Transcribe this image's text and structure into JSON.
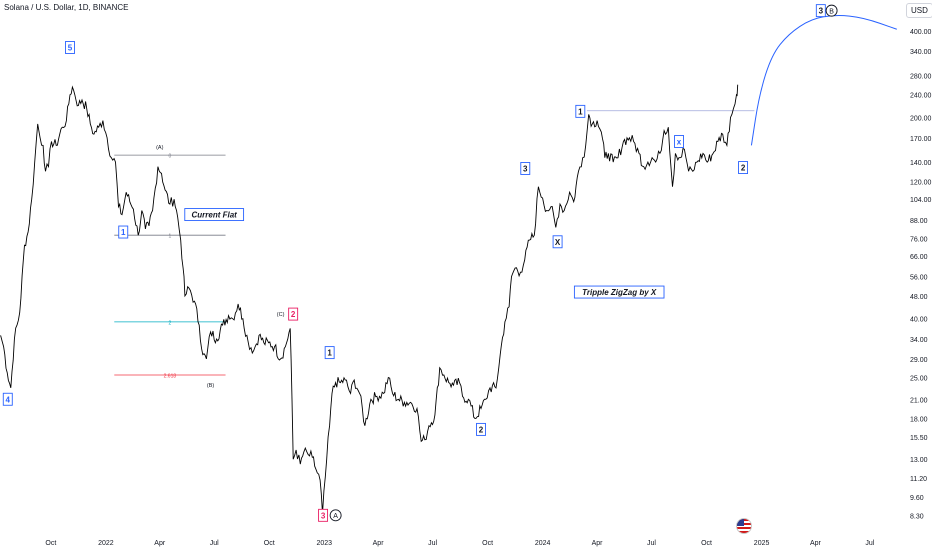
{
  "header": {
    "title": "Solana / U.S. Dollar, 1D, BINANCE",
    "currency": "USD"
  },
  "colors": {
    "price": "#000000",
    "wave_blue": "#2962ff",
    "wave_red": "#e91e63",
    "fib_gray": "#787b86",
    "fib_teal": "#00acc1",
    "fib_red": "#f23645",
    "projection": "#2962ff",
    "resistance": "#9fa8da",
    "axis_text": "#131722"
  },
  "icons": {
    "flag": "us-flag-icon"
  },
  "chart_data": {
    "type": "line",
    "title": "Solana / U.S. Dollar, 1D, BINANCE",
    "y_scale": "log",
    "ylim": [
      7.5,
      480
    ],
    "x_tick_labels": [
      "Oct",
      "2022",
      "Apr",
      "Jul",
      "Oct",
      "2023",
      "Apr",
      "Jul",
      "Oct",
      "2024",
      "Apr",
      "Jul",
      "Oct",
      "2025",
      "Apr",
      "Jul"
    ],
    "y_tick_labels": [
      "400.00",
      "340.00",
      "280.00",
      "240.00",
      "200.00",
      "170.00",
      "140.00",
      "120.00",
      "104.00",
      "88.00",
      "76.00",
      "66.00",
      "56.00",
      "48.00",
      "40.00",
      "34.00",
      "29.00",
      "25.00",
      "21.00",
      "18.00",
      "15.50",
      "13.00",
      "11.20",
      "9.60",
      "8.30"
    ],
    "y_ticks": [
      400,
      340,
      280,
      240,
      200,
      170,
      140,
      120,
      104,
      88,
      76,
      66,
      56,
      48,
      40,
      34,
      29,
      25,
      21,
      18,
      15.5,
      13,
      11.2,
      9.6,
      8.3
    ],
    "x_ticks": [
      "2021-10-01",
      "2022-01-01",
      "2022-04-01",
      "2022-07-01",
      "2022-10-01",
      "2023-01-01",
      "2023-04-01",
      "2023-07-01",
      "2023-10-01",
      "2024-01-01",
      "2024-04-01",
      "2024-07-01",
      "2024-10-01",
      "2025-01-01",
      "2025-04-01",
      "2025-07-01"
    ],
    "xlim": [
      "2021-07-08",
      "2025-08-17"
    ],
    "grid": false,
    "series": [
      {
        "values": [
          [
            "2021-07-09",
            35
          ],
          [
            "2021-07-14",
            32
          ],
          [
            "2021-07-20",
            26
          ],
          [
            "2021-07-26",
            23
          ],
          [
            "2021-08-01",
            34
          ],
          [
            "2021-08-10",
            42
          ],
          [
            "2021-08-18",
            72
          ],
          [
            "2021-08-24",
            80
          ],
          [
            "2021-08-30",
            104
          ],
          [
            "2021-09-04",
            140
          ],
          [
            "2021-09-09",
            190
          ],
          [
            "2021-09-13",
            170
          ],
          [
            "2021-09-18",
            160
          ],
          [
            "2021-09-22",
            130
          ],
          [
            "2021-09-27",
            135
          ],
          [
            "2021-10-02",
            165
          ],
          [
            "2021-10-10",
            160
          ],
          [
            "2021-10-20",
            185
          ],
          [
            "2021-10-27",
            195
          ],
          [
            "2021-11-02",
            240
          ],
          [
            "2021-11-06",
            255
          ],
          [
            "2021-11-10",
            240
          ],
          [
            "2021-11-16",
            220
          ],
          [
            "2021-11-22",
            230
          ],
          [
            "2021-11-30",
            215
          ],
          [
            "2021-12-06",
            190
          ],
          [
            "2021-12-12",
            175
          ],
          [
            "2021-12-20",
            185
          ],
          [
            "2021-12-27",
            195
          ],
          [
            "2022-01-03",
            170
          ],
          [
            "2022-01-10",
            145
          ],
          [
            "2022-01-17",
            140
          ],
          [
            "2022-01-22",
            98
          ],
          [
            "2022-01-28",
            92
          ],
          [
            "2022-02-04",
            110
          ],
          [
            "2022-02-10",
            102
          ],
          [
            "2022-02-16",
            96
          ],
          [
            "2022-02-24",
            78
          ],
          [
            "2022-03-02",
            95
          ],
          [
            "2022-03-08",
            82
          ],
          [
            "2022-03-14",
            84
          ],
          [
            "2022-03-20",
            95
          ],
          [
            "2022-03-29",
            135
          ],
          [
            "2022-04-04",
            128
          ],
          [
            "2022-04-10",
            112
          ],
          [
            "2022-04-18",
            100
          ],
          [
            "2022-04-25",
            104
          ],
          [
            "2022-05-01",
            90
          ],
          [
            "2022-05-06",
            75
          ],
          [
            "2022-05-10",
            60
          ],
          [
            "2022-05-13",
            48
          ],
          [
            "2022-05-20",
            51
          ],
          [
            "2022-05-29",
            46
          ],
          [
            "2022-06-06",
            38
          ],
          [
            "2022-06-12",
            30
          ],
          [
            "2022-06-18",
            29
          ],
          [
            "2022-06-25",
            36
          ],
          [
            "2022-07-05",
            34
          ],
          [
            "2022-07-15",
            38
          ],
          [
            "2022-07-25",
            41
          ],
          [
            "2022-08-01",
            40
          ],
          [
            "2022-08-10",
            45
          ],
          [
            "2022-08-18",
            40
          ],
          [
            "2022-08-27",
            33
          ],
          [
            "2022-09-05",
            31
          ],
          [
            "2022-09-14",
            35
          ],
          [
            "2022-09-22",
            33
          ],
          [
            "2022-09-30",
            33
          ],
          [
            "2022-10-10",
            32
          ],
          [
            "2022-10-20",
            29
          ],
          [
            "2022-10-28",
            32
          ],
          [
            "2022-11-05",
            37
          ],
          [
            "2022-11-08",
            21
          ],
          [
            "2022-11-10",
            13
          ],
          [
            "2022-11-15",
            14
          ],
          [
            "2022-11-22",
            12.5
          ],
          [
            "2022-11-28",
            13.8
          ],
          [
            "2022-12-05",
            13.5
          ],
          [
            "2022-12-12",
            13.2
          ],
          [
            "2022-12-18",
            12
          ],
          [
            "2022-12-25",
            11
          ],
          [
            "2022-12-29",
            8.4
          ],
          [
            "2023-01-05",
            13
          ],
          [
            "2023-01-10",
            17
          ],
          [
            "2023-01-14",
            22
          ],
          [
            "2023-01-20",
            24
          ],
          [
            "2023-01-28",
            24
          ],
          [
            "2023-02-05",
            24.5
          ],
          [
            "2023-02-14",
            22
          ],
          [
            "2023-02-20",
            24.5
          ],
          [
            "2023-03-01",
            22
          ],
          [
            "2023-03-10",
            17
          ],
          [
            "2023-03-20",
            21
          ],
          [
            "2023-03-30",
            21.5
          ],
          [
            "2023-04-10",
            22
          ],
          [
            "2023-04-18",
            25
          ],
          [
            "2023-04-25",
            22
          ],
          [
            "2023-05-05",
            21
          ],
          [
            "2023-05-15",
            20.5
          ],
          [
            "2023-05-25",
            20.5
          ],
          [
            "2023-06-05",
            19.5
          ],
          [
            "2023-06-12",
            15
          ],
          [
            "2023-06-18",
            15.2
          ],
          [
            "2023-06-25",
            17
          ],
          [
            "2023-07-05",
            18.5
          ],
          [
            "2023-07-13",
            27
          ],
          [
            "2023-07-20",
            25.5
          ],
          [
            "2023-07-28",
            24
          ],
          [
            "2023-08-05",
            23.5
          ],
          [
            "2023-08-15",
            24
          ],
          [
            "2023-08-20",
            21.5
          ],
          [
            "2023-08-30",
            21
          ],
          [
            "2023-09-10",
            18
          ],
          [
            "2023-09-20",
            19.5
          ],
          [
            "2023-09-28",
            21
          ],
          [
            "2023-10-05",
            23
          ],
          [
            "2023-10-15",
            23
          ],
          [
            "2023-10-22",
            30
          ],
          [
            "2023-10-30",
            39
          ],
          [
            "2023-11-06",
            44
          ],
          [
            "2023-11-10",
            56
          ],
          [
            "2023-11-16",
            60
          ],
          [
            "2023-11-25",
            58
          ],
          [
            "2023-12-02",
            64
          ],
          [
            "2023-12-10",
            75
          ],
          [
            "2023-12-18",
            78
          ],
          [
            "2023-12-25",
            115
          ],
          [
            "2024-01-01",
            105
          ],
          [
            "2024-01-08",
            95
          ],
          [
            "2024-01-15",
            98
          ],
          [
            "2024-01-23",
            83
          ],
          [
            "2024-01-30",
            100
          ],
          [
            "2024-02-06",
            95
          ],
          [
            "2024-02-15",
            110
          ],
          [
            "2024-02-22",
            102
          ],
          [
            "2024-03-01",
            130
          ],
          [
            "2024-03-08",
            145
          ],
          [
            "2024-03-13",
            160
          ],
          [
            "2024-03-18",
            205
          ],
          [
            "2024-03-24",
            190
          ],
          [
            "2024-04-01",
            195
          ],
          [
            "2024-04-08",
            178
          ],
          [
            "2024-04-14",
            145
          ],
          [
            "2024-04-20",
            150
          ],
          [
            "2024-04-28",
            140
          ],
          [
            "2024-05-06",
            145
          ],
          [
            "2024-05-15",
            165
          ],
          [
            "2024-05-25",
            170
          ],
          [
            "2024-06-01",
            165
          ],
          [
            "2024-06-10",
            150
          ],
          [
            "2024-06-18",
            135
          ],
          [
            "2024-06-25",
            140
          ],
          [
            "2024-07-02",
            145
          ],
          [
            "2024-07-08",
            140
          ],
          [
            "2024-07-15",
            150
          ],
          [
            "2024-07-22",
            180
          ],
          [
            "2024-07-29",
            185
          ],
          [
            "2024-08-05",
            115
          ],
          [
            "2024-08-10",
            150
          ],
          [
            "2024-08-18",
            145
          ],
          [
            "2024-08-25",
            155
          ],
          [
            "2024-09-01",
            130
          ],
          [
            "2024-09-08",
            130
          ],
          [
            "2024-09-15",
            140
          ],
          [
            "2024-09-25",
            150
          ],
          [
            "2024-10-02",
            140
          ],
          [
            "2024-10-12",
            150
          ],
          [
            "2024-10-20",
            165
          ],
          [
            "2024-10-28",
            175
          ],
          [
            "2024-11-04",
            160
          ],
          [
            "2024-11-10",
            200
          ],
          [
            "2024-11-15",
            215
          ],
          [
            "2024-11-20",
            240
          ],
          [
            "2024-11-22",
            260
          ]
        ]
      }
    ],
    "annotations": [
      {
        "label": "5",
        "date": "2021-11-02",
        "value": 350,
        "color": "wave_blue"
      },
      {
        "label": "4",
        "date": "2021-07-21",
        "value": 21,
        "color": "wave_blue"
      },
      {
        "label": "1",
        "date": "2022-01-30",
        "value": 80,
        "color": "wave_blue"
      },
      {
        "label": "2",
        "date": "2022-11-10",
        "value": 41.5,
        "color": "wave_red"
      },
      {
        "label": "3",
        "date": "2022-12-30",
        "value": 8.3,
        "color": "wave_red"
      },
      {
        "label": "1",
        "date": "2023-01-10",
        "value": 30.5,
        "color": "wave_dark"
      },
      {
        "label": "2",
        "date": "2023-09-20",
        "value": 16.5,
        "color": "wave_dark"
      },
      {
        "label": "3",
        "date": "2023-12-03",
        "value": 133,
        "color": "wave_dark"
      },
      {
        "label": "X",
        "date": "2024-01-26",
        "value": 74,
        "color": "wave_dark"
      },
      {
        "label": "1",
        "date": "2024-03-04",
        "value": 210,
        "color": "wave_dark"
      },
      {
        "label": "2",
        "date": "2024-12-01",
        "value": 134,
        "color": "wave_dark"
      },
      {
        "label": "x",
        "date": "2024-08-16",
        "value": 165,
        "color": "wave_blue"
      },
      {
        "label": "3",
        "date": "2025-04-10",
        "value": 470,
        "color": "wave_dark"
      }
    ],
    "circle_labels": [
      {
        "label": "A",
        "date": "2023-01-20",
        "value": 8.3
      },
      {
        "label": "B",
        "date": "2025-04-28",
        "value": 470
      }
    ],
    "text_labels": [
      {
        "text": "(A)",
        "date": "2022-04-01",
        "value": 158
      },
      {
        "text": "(B)",
        "date": "2022-06-25",
        "value": 23.5
      },
      {
        "text": "(C)",
        "date": "2022-10-20",
        "value": 41.5
      },
      {
        "text": "Current Flat",
        "date": "2022-07-01",
        "value": 92,
        "boxed": true
      },
      {
        "text": "Tripple ZigZag by X",
        "date": "2024-05-08",
        "value": 49.5,
        "boxed": true
      }
    ],
    "fib_levels": [
      {
        "label": "0",
        "value": 148,
        "start": "2022-01-15",
        "end": "2022-07-20",
        "color": "fib_gray"
      },
      {
        "label": "1",
        "value": 78,
        "start": "2022-01-15",
        "end": "2022-07-20",
        "color": "fib_gray"
      },
      {
        "label": "2",
        "value": 39,
        "start": "2022-01-15",
        "end": "2022-07-20",
        "color": "fib_teal"
      },
      {
        "label": "2.618",
        "value": 25.5,
        "start": "2022-01-15",
        "end": "2022-07-20",
        "color": "fib_red"
      }
    ],
    "resistance_line": {
      "value": 211,
      "start": "2024-03-15",
      "end": "2024-12-20"
    },
    "projection": [
      [
        "2024-12-15",
        160
      ],
      [
        "2024-12-28",
        240
      ],
      [
        "2025-01-18",
        330
      ],
      [
        "2025-02-15",
        390
      ],
      [
        "2025-03-25",
        440
      ],
      [
        "2025-05-05",
        455
      ],
      [
        "2025-06-20",
        445
      ],
      [
        "2025-08-15",
        405
      ]
    ]
  }
}
